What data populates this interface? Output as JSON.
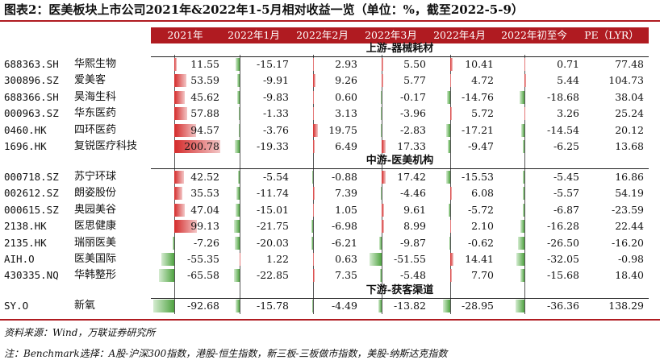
{
  "title": "图表2：医美板块上市公司2021年&2022年1-5月相对收益一览（单位：%，截至2022-5-9）",
  "headers": [
    "2021年",
    "2022年1月",
    "2022年2月",
    "2022年3月",
    "2022年4月",
    "2022年初至今",
    "PE（LYR）"
  ],
  "sections": [
    {
      "label": "上游-器械耗材",
      "rows": [
        {
          "code": "688363.SH",
          "name": "华熙生物",
          "values": [
            "11.55",
            "-15.17",
            "2.93",
            "5.50",
            "10.41",
            "0.71",
            "77.48"
          ]
        },
        {
          "code": "300896.SZ",
          "name": "爱美客",
          "values": [
            "53.59",
            "-9.91",
            "9.26",
            "5.77",
            "4.72",
            "5.44",
            "104.73"
          ]
        },
        {
          "code": "688366.SH",
          "name": "昊海生科",
          "values": [
            "45.62",
            "-9.83",
            "0.60",
            "-0.17",
            "-14.76",
            "-18.68",
            "38.04"
          ]
        },
        {
          "code": "000963.SZ",
          "name": "华东医药",
          "values": [
            "57.88",
            "-1.33",
            "3.13",
            "-3.96",
            "5.72",
            "3.26",
            "25.24"
          ]
        },
        {
          "code": "0460.HK",
          "name": "四环医药",
          "values": [
            "94.57",
            "-3.76",
            "19.75",
            "-2.83",
            "-17.21",
            "-14.54",
            "20.12"
          ]
        },
        {
          "code": "1696.HK",
          "name": "复锐医疗科技",
          "values": [
            "200.78",
            "-19.33",
            "6.49",
            "17.33",
            "-9.47",
            "-6.25",
            "13.68"
          ]
        }
      ]
    },
    {
      "label": "中游-医美机构",
      "rows": [
        {
          "code": "000718.SZ",
          "name": "苏宁环球",
          "values": [
            "42.52",
            "-5.54",
            "-0.88",
            "17.42",
            "-15.53",
            "-5.45",
            "16.86"
          ]
        },
        {
          "code": "002612.SZ",
          "name": "朗姿股份",
          "values": [
            "35.53",
            "-11.74",
            "7.39",
            "-4.46",
            "6.08",
            "-5.57",
            "54.19"
          ]
        },
        {
          "code": "000615.SZ",
          "name": "奥园美谷",
          "values": [
            "47.04",
            "-15.01",
            "1.05",
            "9.61",
            "-5.72",
            "-6.87",
            "-23.59"
          ]
        },
        {
          "code": "2138.HK",
          "name": "医思健康",
          "values": [
            "99.13",
            "-21.75",
            "-6.98",
            "8.99",
            "2.10",
            "-16.28",
            "22.44"
          ]
        },
        {
          "code": "2135.HK",
          "name": "瑞丽医美",
          "values": [
            "-7.26",
            "-20.03",
            "-6.21",
            "-9.87",
            "-0.62",
            "-26.50",
            "-16.20"
          ]
        },
        {
          "code": "AIH.O",
          "name": "医美国际",
          "values": [
            "-55.35",
            "1.22",
            "0.63",
            "-51.55",
            "14.41",
            "-32.05",
            "-0.98"
          ]
        },
        {
          "code": "430335.NQ",
          "name": "华韩整形",
          "values": [
            "-65.58",
            "-22.85",
            "7.35",
            "-5.48",
            "7.70",
            "-15.68",
            "18.40"
          ]
        }
      ]
    },
    {
      "label": "下游-获客渠道",
      "rows": [
        {
          "code": "SY.O",
          "name": "新氧",
          "values": [
            "-92.68",
            "-15.78",
            "-4.49",
            "-13.82",
            "-28.95",
            "-36.36",
            "138.29"
          ]
        }
      ]
    }
  ],
  "footer": {
    "source": "资料来源：Wind，万联证券研究所",
    "note": "注：Benchmark选择：A股-沪深300指数，港股-恒生指数，新三板-三板做市指数，美股-纳斯达克指数"
  },
  "colors": {
    "accent": "#b01b21",
    "positive": "#d42a2a",
    "negative": "#4fa341"
  }
}
